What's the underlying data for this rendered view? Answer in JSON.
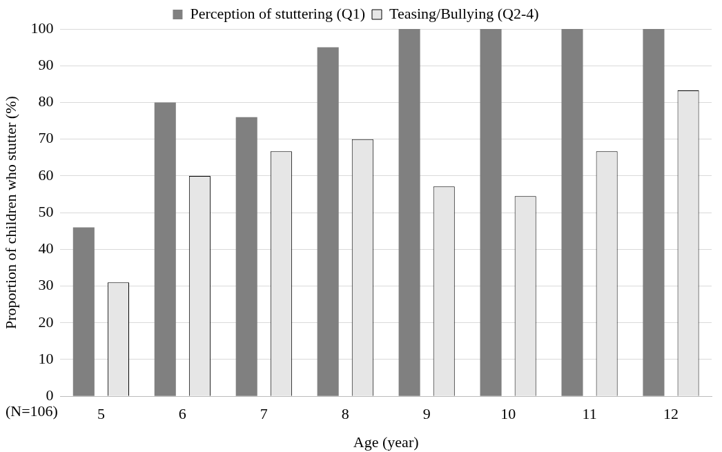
{
  "chart_data": {
    "type": "bar",
    "categories": [
      "5",
      "6",
      "7",
      "8",
      "9",
      "10",
      "11",
      "12"
    ],
    "series": [
      {
        "name": "Perception of stuttering (Q1)",
        "color": "#808080",
        "values": [
          46,
          80,
          76,
          95,
          100,
          100,
          100,
          100
        ]
      },
      {
        "name": "Teasing/Bullying (Q2-4)",
        "color": "#e6e6e6",
        "values": [
          31,
          60,
          66.7,
          70,
          57.1,
          54.5,
          66.7,
          83.3
        ]
      }
    ],
    "xlabel": "Age (year)",
    "ylabel": "Proportion of children who stutter (%)",
    "ylim": [
      0,
      100
    ],
    "yticks": [
      0,
      10,
      20,
      30,
      40,
      50,
      60,
      70,
      80,
      90,
      100
    ],
    "grid": "y",
    "legend": "top",
    "annotations": [
      "(N=106)"
    ]
  }
}
